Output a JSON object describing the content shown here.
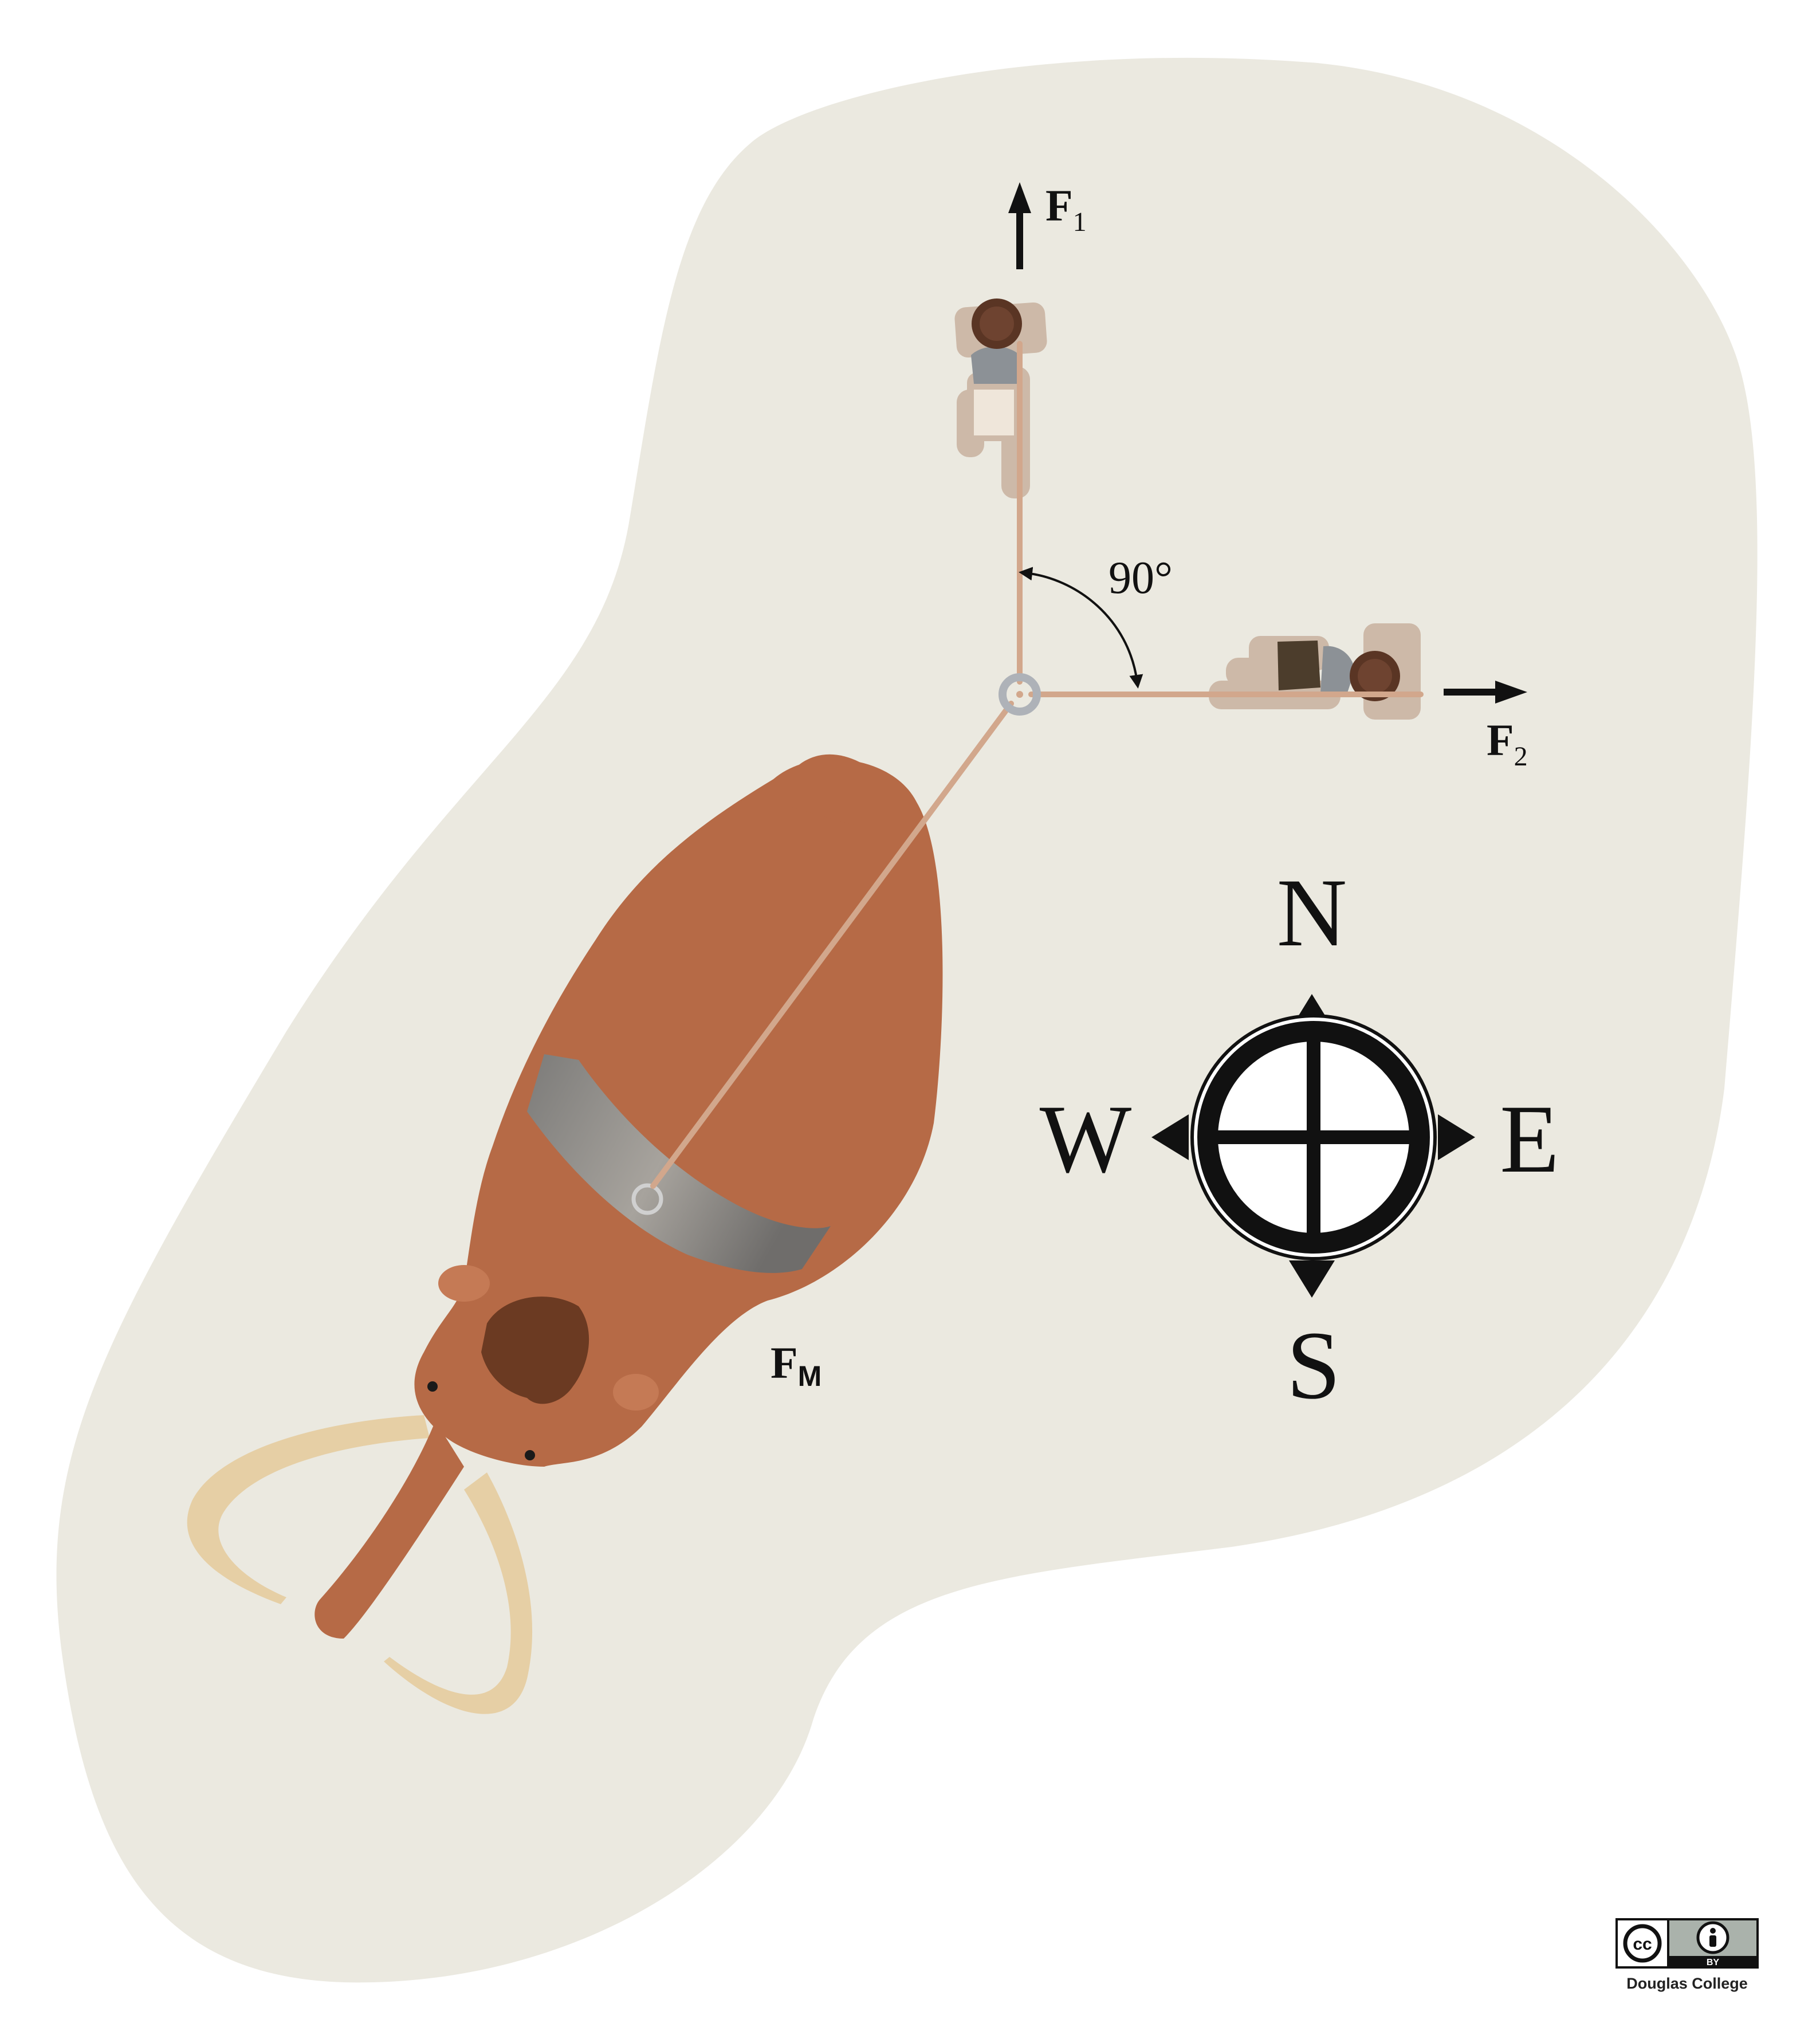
{
  "forces": {
    "f1": {
      "symbol": "F",
      "subscript": "1"
    },
    "f2": {
      "symbol": "F",
      "subscript": "2"
    },
    "fm": {
      "symbol": "F",
      "subscript": "M"
    }
  },
  "angle_label": "90°",
  "compass": {
    "north": "N",
    "south": "S",
    "east": "E",
    "west": "W"
  },
  "license": {
    "badge_left": "cc",
    "badge_right": "BY",
    "credit": "Douglas College"
  },
  "colors": {
    "ground": "#ebe9e0",
    "rope": "#d2a78c",
    "mammoth_fur": "#b66a46",
    "mammoth_patch": "#6b3a22",
    "tusk": "#e6cfa5",
    "harness": "#8f8d89",
    "person_hair": "#5a3524",
    "person_shadow": "#cdb9a8",
    "arrow": "#111111"
  },
  "icons": [
    "cc-icon",
    "by-person-icon",
    "compass-icon",
    "arrow-icon",
    "ring-icon"
  ]
}
